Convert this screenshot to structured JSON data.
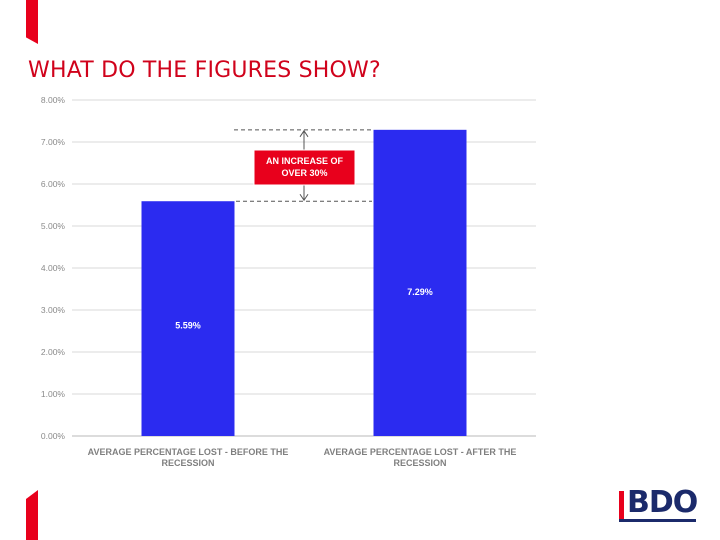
{
  "slide": {
    "title": "WHAT DO THE FIGURES SHOW?"
  },
  "brand": {
    "logo_text": "BDO",
    "accent_color": "#e8001c",
    "logo_color": "#1b2a6b",
    "title_color": "#d0021b"
  },
  "chart_data": {
    "type": "bar",
    "categories": [
      "AVERAGE PERCENTAGE LOST - BEFORE THE RECESSION",
      "AVERAGE PERCENTAGE LOST - AFTER THE RECESSION"
    ],
    "category_lines": [
      [
        "AVERAGE PERCENTAGE LOST - BEFORE THE",
        "RECESSION"
      ],
      [
        "AVERAGE PERCENTAGE LOST - AFTER THE",
        "RECESSION"
      ]
    ],
    "values": [
      5.59,
      7.29
    ],
    "data_labels": [
      "5.59%",
      "7.29%"
    ],
    "ylim": [
      0,
      8
    ],
    "ytick_values": [
      0,
      1,
      2,
      3,
      4,
      5,
      6,
      7,
      8
    ],
    "yticks": [
      "0.00%",
      "1.00%",
      "2.00%",
      "3.00%",
      "4.00%",
      "5.00%",
      "6.00%",
      "7.00%",
      "8.00%"
    ],
    "bar_color": "#2b2bf0",
    "grid": true,
    "annotation": {
      "lines": [
        "AN INCREASE OF",
        "OVER 30%"
      ],
      "color": "#e8001c",
      "from_value": 5.59,
      "to_value": 7.29
    }
  }
}
